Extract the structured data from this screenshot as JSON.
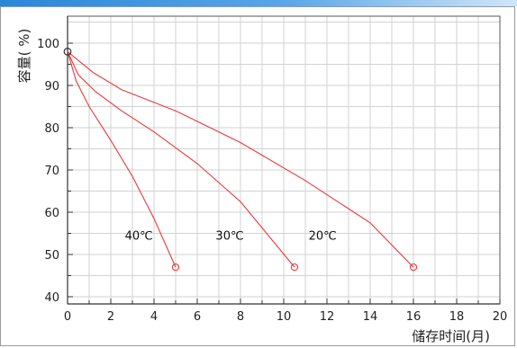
{
  "chart_data": {
    "type": "line",
    "xlabel": "储存时间(月)",
    "ylabel": "容量( %)",
    "xlim": [
      0,
      20
    ],
    "ylim": [
      40,
      100
    ],
    "x_ticks": [
      "0",
      "2",
      "4",
      "6",
      "8",
      "10",
      "12",
      "14",
      "16",
      "18",
      "20"
    ],
    "y_ticks": [
      "40",
      "50",
      "60",
      "70",
      "80",
      "90",
      "100"
    ],
    "grid": true,
    "line_color": "#e23b3b",
    "series": [
      {
        "name": "40℃",
        "points": [
          [
            0,
            98
          ],
          [
            0.4,
            91
          ],
          [
            1.0,
            85
          ],
          [
            2.0,
            77
          ],
          [
            3.0,
            68.5
          ],
          [
            4.0,
            58.5
          ],
          [
            5.0,
            47
          ]
        ],
        "label_at": [
          3.3,
          53.5
        ]
      },
      {
        "name": "30℃",
        "points": [
          [
            0,
            98
          ],
          [
            0.5,
            92.5
          ],
          [
            1.3,
            88.5
          ],
          [
            2.5,
            84
          ],
          [
            4.0,
            79
          ],
          [
            6.0,
            71.5
          ],
          [
            8.0,
            62.5
          ],
          [
            10.5,
            47
          ]
        ],
        "label_at": [
          7.5,
          53.5
        ]
      },
      {
        "name": "20℃",
        "points": [
          [
            0,
            98
          ],
          [
            1.2,
            93
          ],
          [
            2.5,
            89
          ],
          [
            5.0,
            84
          ],
          [
            8.0,
            76.5
          ],
          [
            11.0,
            67.5
          ],
          [
            14.0,
            57.5
          ],
          [
            16.0,
            47
          ]
        ],
        "label_at": [
          11.8,
          53.5
        ]
      }
    ]
  }
}
